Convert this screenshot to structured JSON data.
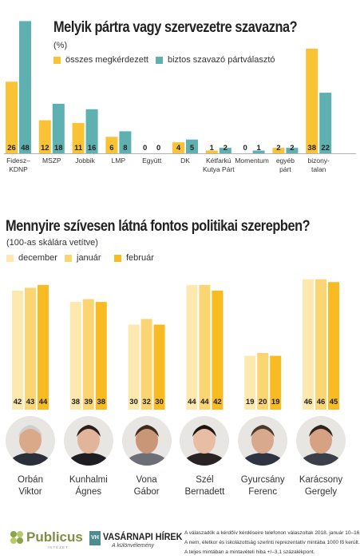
{
  "chart1": {
    "title": "Melyik pártra vagy szervezetre szavazna?",
    "subtitle": "(%)",
    "legend": [
      "összes megkérdezett",
      "biztos szavazó pártválasztó"
    ],
    "colors": {
      "s1": "#f9c335",
      "s2": "#5fb0b0"
    },
    "chart_data": {
      "type": "bar",
      "categories": [
        "Fidesz–KDNP",
        "MSZP",
        "Jobbik",
        "LMP",
        "Együtt",
        "DK",
        "Kétfarkú Kutya Párt",
        "Momentum",
        "egyéb párt",
        "bizony-talan"
      ],
      "category_lines": [
        [
          "Fidesz–",
          "KDNP"
        ],
        [
          "MSZP"
        ],
        [
          "Jobbik"
        ],
        [
          "LMP"
        ],
        [
          "Együtt"
        ],
        [
          "DK"
        ],
        [
          "Kétfarkú",
          "Kutya Párt"
        ],
        [
          "Momentum"
        ],
        [
          "egyéb",
          "párt"
        ],
        [
          "bizony-",
          "talan"
        ]
      ],
      "series": [
        {
          "name": "összes megkérdezett",
          "values": [
            26,
            12,
            11,
            6,
            0,
            4,
            1,
            0,
            2,
            38
          ]
        },
        {
          "name": "biztos szavazó pártválasztó",
          "values": [
            48,
            18,
            16,
            8,
            0,
            5,
            2,
            1,
            2,
            22
          ]
        }
      ],
      "ylim": [
        0,
        50
      ]
    }
  },
  "chart2": {
    "title": "Mennyire szívesen látná fontos politikai szerepben?",
    "subtitle": "(100-as skálára vetítve)",
    "legend": [
      "december",
      "január",
      "február"
    ],
    "colors": {
      "s1": "#fde9b0",
      "s2": "#fbd571",
      "s3": "#f8bc22"
    },
    "chart_data": {
      "type": "bar",
      "categories": [
        "Orbán Viktor",
        "Kunhalmi Ágnes",
        "Vona Gábor",
        "Szél Bernadett",
        "Gyurcsány Ferenc",
        "Karácsony Gergely"
      ],
      "category_lines": [
        [
          "Orbán",
          "Viktor"
        ],
        [
          "Kunhalmi",
          "Ágnes"
        ],
        [
          "Vona",
          "Gábor"
        ],
        [
          "Szél",
          "Bernadett"
        ],
        [
          "Gyurcsány",
          "Ferenc"
        ],
        [
          "Karácsony",
          "Gergely"
        ]
      ],
      "series": [
        {
          "name": "december",
          "values": [
            42,
            38,
            30,
            44,
            19,
            46
          ]
        },
        {
          "name": "január",
          "values": [
            43,
            39,
            32,
            44,
            20,
            46
          ]
        },
        {
          "name": "február",
          "values": [
            44,
            38,
            30,
            42,
            19,
            45
          ]
        }
      ],
      "ylim": [
        0,
        50
      ]
    }
  },
  "footer": {
    "logo1": "Publicus",
    "logo1_sub": "INTÉZET",
    "logo2_badge": "VH",
    "logo2": "VASÁRNAPI HÍREK",
    "logo2_sub": "A különvélemény",
    "notes": [
      "A válaszadók a kérdőív kérdéseire telefonon válaszoltak 2018. január 10–16. között.",
      "A nem, életkor és iskolázottság szerinti reprezentatív mintába 1000 fő került.",
      "A teljes mintában a mintavételi hiba +/–3,1 százalékpont."
    ]
  }
}
